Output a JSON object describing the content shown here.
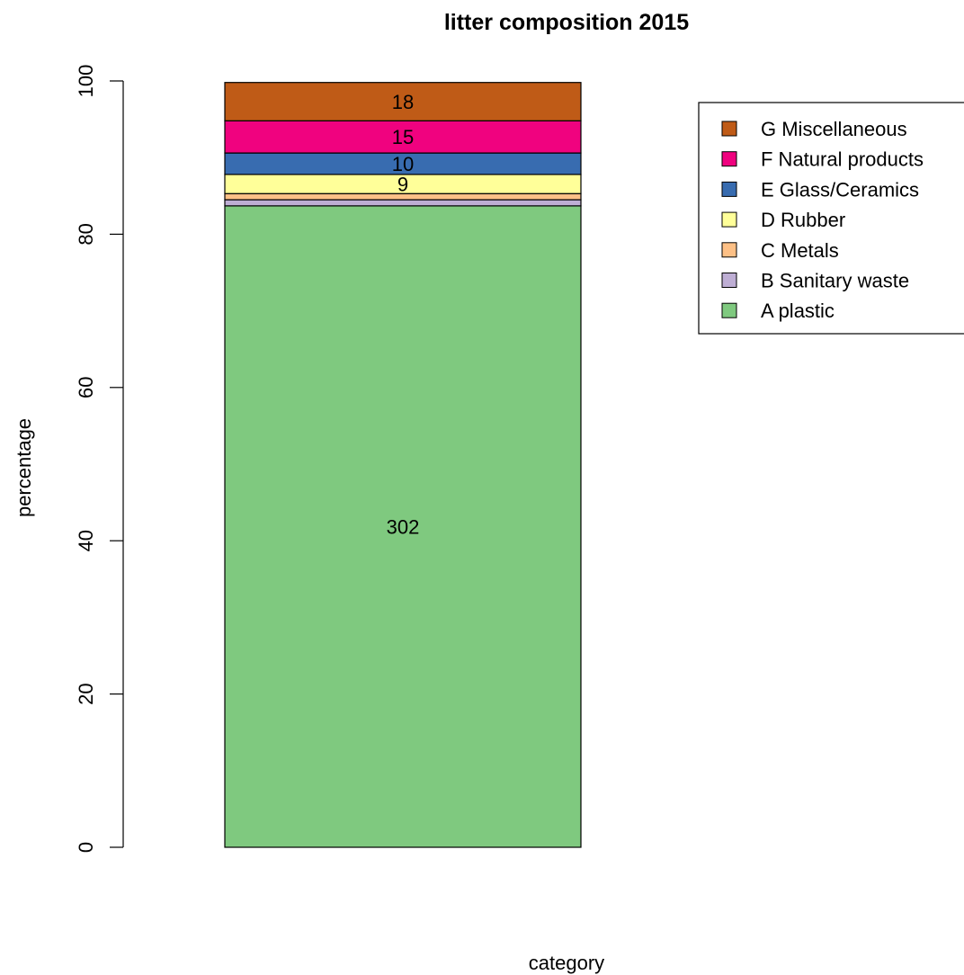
{
  "chart_data": {
    "type": "bar",
    "stacked": true,
    "title": "litter composition 2015",
    "xlabel": "category",
    "ylabel": "percentage",
    "ylim": [
      0,
      100
    ],
    "yticks": [
      0,
      20,
      40,
      60,
      80,
      100
    ],
    "grid": false,
    "legend_position": "top-right",
    "series": [
      {
        "name": "A plastic",
        "value": 83.7,
        "label": "302",
        "color": "#7FC97F"
      },
      {
        "name": "B Sanitary waste",
        "value": 0.8,
        "label": "",
        "color": "#BEAED4"
      },
      {
        "name": "C Metals",
        "value": 0.8,
        "label": "",
        "color": "#FDC086"
      },
      {
        "name": "D Rubber",
        "value": 2.5,
        "label": "9",
        "color": "#FFFF99"
      },
      {
        "name": "E Glass/Ceramics",
        "value": 2.8,
        "label": "10",
        "color": "#386CB0"
      },
      {
        "name": "F Natural products",
        "value": 4.2,
        "label": "15",
        "color": "#F0027F"
      },
      {
        "name": "G Miscellaneous",
        "value": 5.0,
        "label": "18",
        "color": "#BF5B17"
      }
    ]
  }
}
